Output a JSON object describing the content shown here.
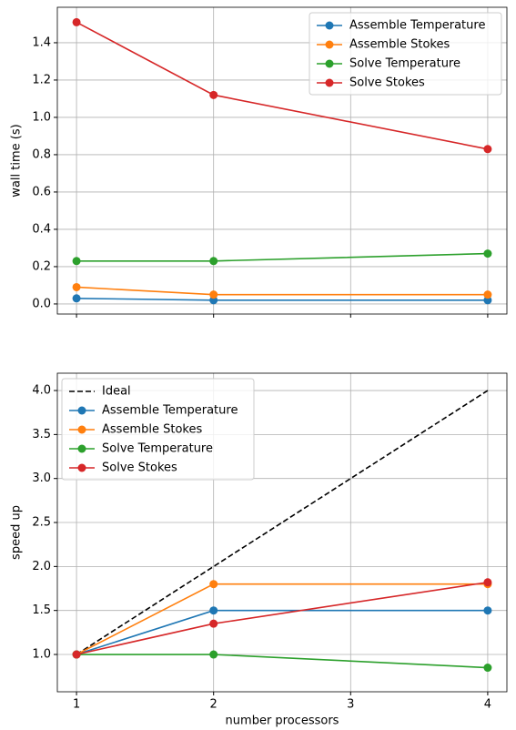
{
  "chart_data": [
    {
      "type": "line",
      "ylabel": "wall time (s)",
      "x": [
        1,
        2,
        4
      ],
      "xlim": [
        0.86,
        4.14
      ],
      "xticks": [
        1,
        2,
        3,
        4
      ],
      "xtick_labels": false,
      "ylim": [
        -0.054,
        1.59
      ],
      "yticks": [
        {
          "value": 0,
          "label": "0.0"
        },
        0.2,
        0.4,
        0.6,
        0.8,
        {
          "value": 1,
          "label": "1.0"
        },
        1.2,
        1.4
      ],
      "grid": true,
      "legend": "upper right",
      "series": [
        {
          "name": "Assemble Temperature",
          "color": "#1f77b4",
          "marker": "o",
          "values": [
            0.03,
            0.02,
            0.02
          ]
        },
        {
          "name": "Assemble Stokes",
          "color": "#ff7f0e",
          "marker": "o",
          "values": [
            0.09,
            0.05,
            0.05
          ]
        },
        {
          "name": "Solve Temperature",
          "color": "#2ca02c",
          "marker": "o",
          "values": [
            0.23,
            0.23,
            0.27
          ]
        },
        {
          "name": "Solve Stokes",
          "color": "#d62728",
          "marker": "o",
          "values": [
            1.51,
            1.12,
            0.83
          ]
        }
      ]
    },
    {
      "type": "line",
      "ylabel": "speed up",
      "xlabel": "number processors",
      "x": [
        1,
        2,
        4
      ],
      "xlim": [
        0.86,
        4.14
      ],
      "xticks": [
        1,
        2,
        3,
        4
      ],
      "xtick_labels": true,
      "ylim": [
        0.576,
        4.197
      ],
      "yticks": [
        {
          "value": 1,
          "label": "1.0"
        },
        1.5,
        {
          "value": 2,
          "label": "2.0"
        },
        2.5,
        {
          "value": 3,
          "label": "3.0"
        },
        3.5,
        {
          "value": 4,
          "label": "4.0"
        }
      ],
      "grid": true,
      "legend": "upper left",
      "series": [
        {
          "name": "Ideal",
          "color": "#000000",
          "linestyle": "dashed",
          "values": [
            1,
            2,
            4
          ]
        },
        {
          "name": "Assemble Temperature",
          "color": "#1f77b4",
          "marker": "o",
          "values": [
            1,
            1.5,
            1.5
          ]
        },
        {
          "name": "Assemble Stokes",
          "color": "#ff7f0e",
          "marker": "o",
          "values": [
            1,
            1.8,
            1.8
          ]
        },
        {
          "name": "Solve Temperature",
          "color": "#2ca02c",
          "marker": "o",
          "values": [
            1,
            1.0,
            0.85
          ]
        },
        {
          "name": "Solve Stokes",
          "color": "#d62728",
          "marker": "o",
          "values": [
            1,
            1.35,
            1.82
          ]
        }
      ]
    }
  ]
}
